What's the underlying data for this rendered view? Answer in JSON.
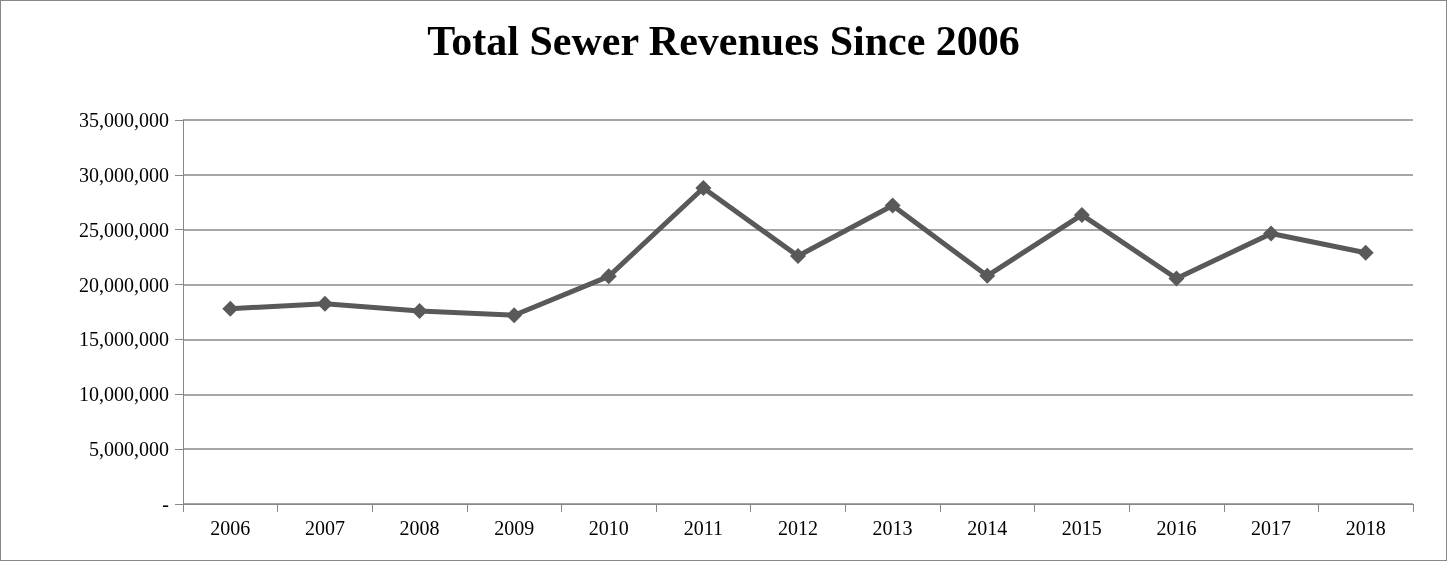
{
  "chart_data": {
    "type": "line",
    "title": "Total Sewer Revenues Since 2006",
    "categories": [
      "2006",
      "2007",
      "2008",
      "2009",
      "2010",
      "2011",
      "2012",
      "2013",
      "2014",
      "2015",
      "2016",
      "2017",
      "2018"
    ],
    "series": [
      {
        "color": "#595959",
        "values": [
          17800000,
          18250000,
          17600000,
          17200000,
          20750000,
          28800000,
          22600000,
          27200000,
          20800000,
          26350000,
          20550000,
          24650000,
          22900000
        ]
      }
    ],
    "ylim": [
      0,
      35000000
    ],
    "yticks": [
      {
        "value": 0,
        "label": "-"
      },
      {
        "value": 5000000,
        "label": "5,000,000"
      },
      {
        "value": 10000000,
        "label": "10,000,000"
      },
      {
        "value": 15000000,
        "label": "15,000,000"
      },
      {
        "value": 20000000,
        "label": "20,000,000"
      },
      {
        "value": 25000000,
        "label": "25,000,000"
      },
      {
        "value": 30000000,
        "label": "30,000,000"
      },
      {
        "value": 35000000,
        "label": "35,000,000"
      }
    ],
    "grid": "y",
    "marker": "diamond",
    "line_style": "solid"
  }
}
